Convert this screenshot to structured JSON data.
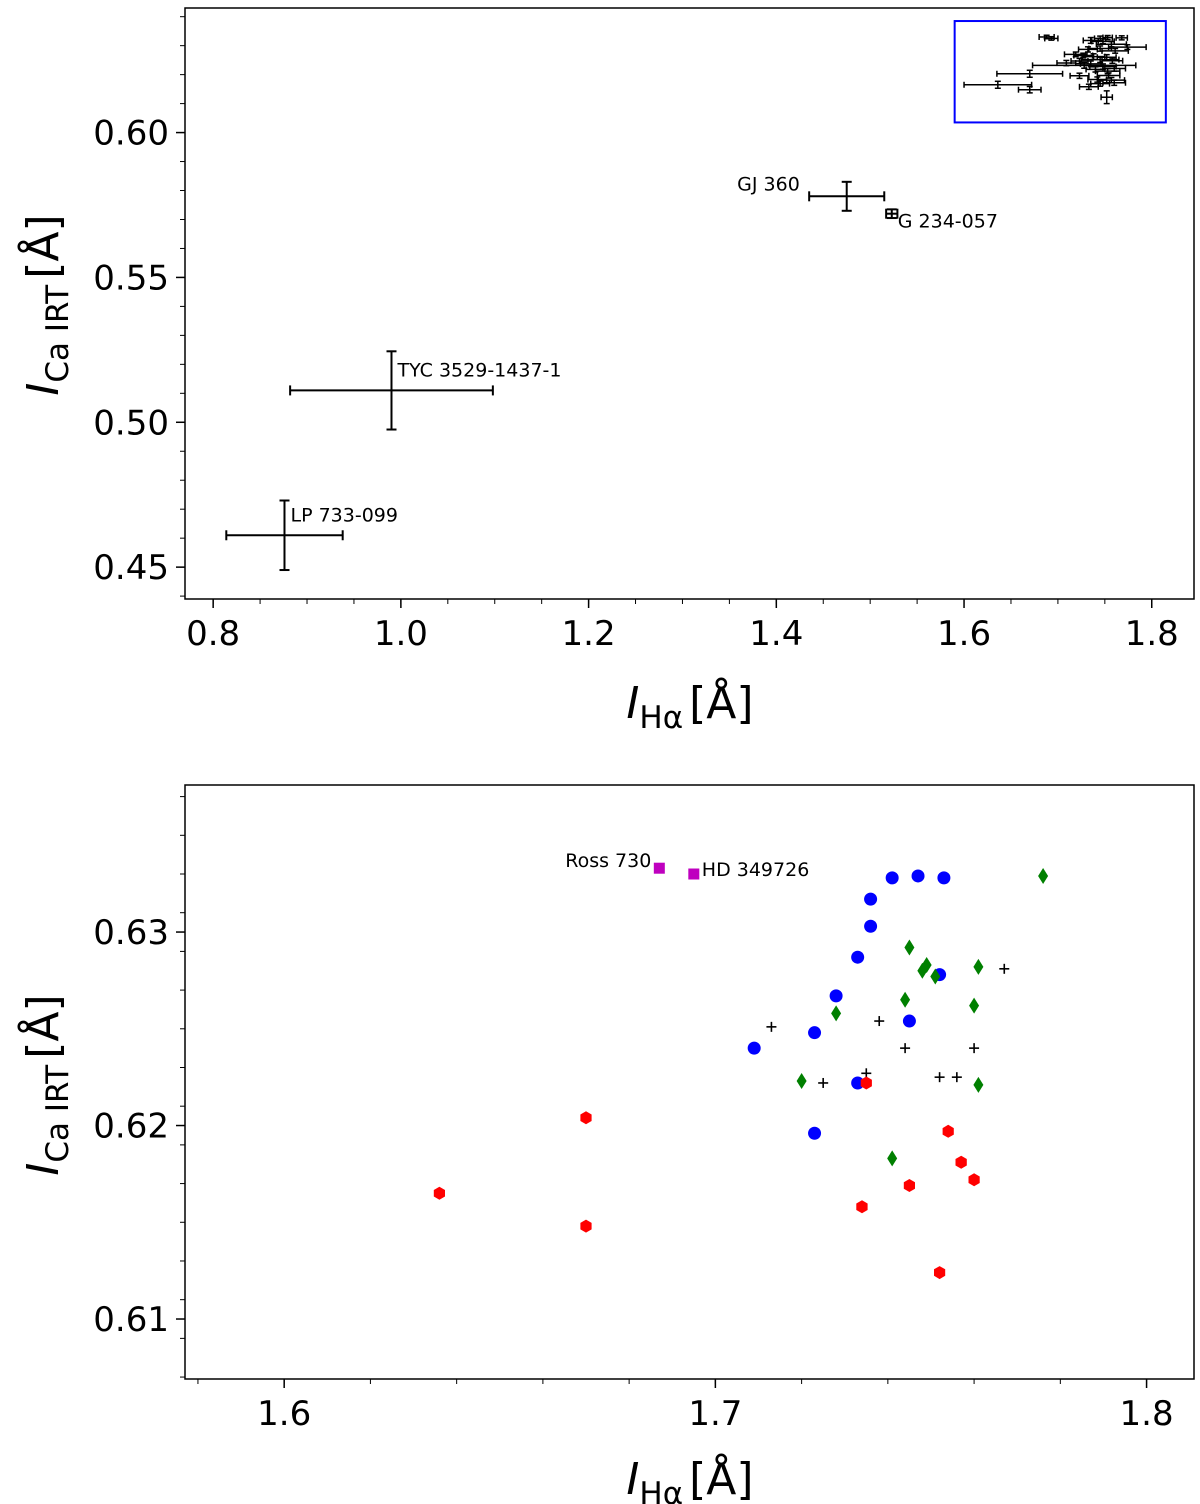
{
  "chart_data": [
    {
      "type": "scatter",
      "title": "",
      "xlabel": {
        "base": "I",
        "sub": "Hα",
        "unit": "[Å]"
      },
      "ylabel": {
        "base": "I",
        "sub": "Ca IRT",
        "unit": "[Å]"
      },
      "xlim": [
        0.77,
        1.845
      ],
      "ylim": [
        0.439,
        0.643
      ],
      "x_ticks": [
        0.8,
        1.0,
        1.2,
        1.4,
        1.6,
        1.8
      ],
      "x_tick_labels": [
        "0.8",
        "1.0",
        "1.2",
        "1.4",
        "1.6",
        "1.8"
      ],
      "y_ticks": [
        0.45,
        0.5,
        0.55,
        0.6
      ],
      "y_tick_labels": [
        "0.45",
        "0.50",
        "0.55",
        "0.60"
      ],
      "grid": false,
      "zoom_box": {
        "x_range": [
          1.59,
          1.815
        ],
        "y_range": [
          0.6035,
          0.6385
        ],
        "color": "#0000ff"
      },
      "labeled_points": [
        {
          "name": "GJ 360",
          "x": 1.475,
          "y": 0.578,
          "xerr": 0.04,
          "yerr": 0.005
        },
        {
          "name": "G 234-057",
          "x": 1.523,
          "y": 0.572,
          "xerr": 0.006,
          "yerr": 0.0015
        },
        {
          "name": "TYC 3529-1437-1",
          "x": 0.99,
          "y": 0.511,
          "xerr": 0.108,
          "yerr": 0.0135
        },
        {
          "name": "LP 733-099",
          "x": 0.876,
          "y": 0.461,
          "xerr": 0.062,
          "yerr": 0.012
        }
      ],
      "cluster_points": [
        {
          "x": 1.688,
          "y": 0.633,
          "xerr": 0.008,
          "yerr": 0.0006
        },
        {
          "x": 1.693,
          "y": 0.6325,
          "xerr": 0.007,
          "yerr": 0.0006
        },
        {
          "x": 1.745,
          "y": 0.6325,
          "xerr": 0.006,
          "yerr": 0.0008
        },
        {
          "x": 1.753,
          "y": 0.6328,
          "xerr": 0.005,
          "yerr": 0.0007
        },
        {
          "x": 1.768,
          "y": 0.6327,
          "xerr": 0.006,
          "yerr": 0.0007
        },
        {
          "x": 1.735,
          "y": 0.6318,
          "xerr": 0.008,
          "yerr": 0.001
        },
        {
          "x": 1.748,
          "y": 0.6315,
          "xerr": 0.012,
          "yerr": 0.0008
        },
        {
          "x": 1.757,
          "y": 0.6305,
          "xerr": 0.016,
          "yerr": 0.0009
        },
        {
          "x": 1.774,
          "y": 0.6295,
          "xerr": 0.02,
          "yerr": 0.0008
        },
        {
          "x": 1.732,
          "y": 0.6287,
          "xerr": 0.01,
          "yerr": 0.0009
        },
        {
          "x": 1.745,
          "y": 0.629,
          "xerr": 0.012,
          "yerr": 0.0009
        },
        {
          "x": 1.761,
          "y": 0.6282,
          "xerr": 0.014,
          "yerr": 0.0008
        },
        {
          "x": 1.719,
          "y": 0.627,
          "xerr": 0.012,
          "yerr": 0.0008
        },
        {
          "x": 1.727,
          "y": 0.6266,
          "xerr": 0.01,
          "yerr": 0.0008
        },
        {
          "x": 1.738,
          "y": 0.6262,
          "xerr": 0.012,
          "yerr": 0.001
        },
        {
          "x": 1.752,
          "y": 0.626,
          "xerr": 0.01,
          "yerr": 0.0009
        },
        {
          "x": 1.745,
          "y": 0.6252,
          "xerr": 0.02,
          "yerr": 0.001
        },
        {
          "x": 1.758,
          "y": 0.6248,
          "xerr": 0.011,
          "yerr": 0.0009
        },
        {
          "x": 1.723,
          "y": 0.6247,
          "xerr": 0.009,
          "yerr": 0.0009
        },
        {
          "x": 1.709,
          "y": 0.624,
          "xerr": 0.01,
          "yerr": 0.0009
        },
        {
          "x": 1.735,
          "y": 0.6237,
          "xerr": 0.011,
          "yerr": 0.001
        },
        {
          "x": 1.728,
          "y": 0.6232,
          "xerr": 0.055,
          "yerr": 0.001
        },
        {
          "x": 1.748,
          "y": 0.6228,
          "xerr": 0.014,
          "yerr": 0.0009
        },
        {
          "x": 1.76,
          "y": 0.6221,
          "xerr": 0.012,
          "yerr": 0.0009
        },
        {
          "x": 1.74,
          "y": 0.6218,
          "xerr": 0.01,
          "yerr": 0.0009
        },
        {
          "x": 1.753,
          "y": 0.6212,
          "xerr": 0.013,
          "yerr": 0.0009
        },
        {
          "x": 1.67,
          "y": 0.6203,
          "xerr": 0.035,
          "yerr": 0.0012
        },
        {
          "x": 1.723,
          "y": 0.6196,
          "xerr": 0.01,
          "yerr": 0.0009
        },
        {
          "x": 1.754,
          "y": 0.6197,
          "xerr": 0.012,
          "yerr": 0.0009
        },
        {
          "x": 1.742,
          "y": 0.6183,
          "xerr": 0.01,
          "yerr": 0.0009
        },
        {
          "x": 1.757,
          "y": 0.6181,
          "xerr": 0.014,
          "yerr": 0.0009
        },
        {
          "x": 1.745,
          "y": 0.6169,
          "xerr": 0.01,
          "yerr": 0.0009
        },
        {
          "x": 1.76,
          "y": 0.6172,
          "xerr": 0.012,
          "yerr": 0.0009
        },
        {
          "x": 1.636,
          "y": 0.6165,
          "xerr": 0.036,
          "yerr": 0.0012
        },
        {
          "x": 1.67,
          "y": 0.6148,
          "xerr": 0.012,
          "yerr": 0.0011
        },
        {
          "x": 1.733,
          "y": 0.6158,
          "xerr": 0.01,
          "yerr": 0.0009
        },
        {
          "x": 1.752,
          "y": 0.6122,
          "xerr": 0.006,
          "yerr": 0.0022
        }
      ]
    },
    {
      "type": "scatter",
      "title": "",
      "xlabel": {
        "base": "I",
        "sub": "Hα",
        "unit": "[Å]"
      },
      "ylabel": {
        "base": "I",
        "sub": "Ca IRT",
        "unit": "[Å]"
      },
      "xlim": [
        1.577,
        1.811
      ],
      "ylim": [
        0.6069,
        0.6376
      ],
      "x_ticks": [
        1.6,
        1.7,
        1.8
      ],
      "x_tick_labels": [
        "1.6",
        "1.7",
        "1.8"
      ],
      "y_ticks": [
        0.61,
        0.62,
        0.63
      ],
      "y_tick_labels": [
        "0.61",
        "0.62",
        "0.63"
      ],
      "grid": false,
      "series": [
        {
          "name": "blue circles",
          "marker": "circle",
          "color": "#0000ff",
          "points": [
            {
              "x": 1.741,
              "y": 0.6328
            },
            {
              "x": 1.747,
              "y": 0.6329
            },
            {
              "x": 1.753,
              "y": 0.6328
            },
            {
              "x": 1.736,
              "y": 0.6317
            },
            {
              "x": 1.736,
              "y": 0.6303
            },
            {
              "x": 1.733,
              "y": 0.6287
            },
            {
              "x": 1.752,
              "y": 0.6278
            },
            {
              "x": 1.728,
              "y": 0.6267
            },
            {
              "x": 1.745,
              "y": 0.6254
            },
            {
              "x": 1.723,
              "y": 0.6248
            },
            {
              "x": 1.709,
              "y": 0.624
            },
            {
              "x": 1.733,
              "y": 0.6222
            },
            {
              "x": 1.723,
              "y": 0.6196
            }
          ]
        },
        {
          "name": "green diamonds",
          "marker": "diamond",
          "color": "#008000",
          "points": [
            {
              "x": 1.776,
              "y": 0.6329
            },
            {
              "x": 1.745,
              "y": 0.6292
            },
            {
              "x": 1.749,
              "y": 0.6283
            },
            {
              "x": 1.761,
              "y": 0.6282
            },
            {
              "x": 1.748,
              "y": 0.628
            },
            {
              "x": 1.751,
              "y": 0.6277
            },
            {
              "x": 1.744,
              "y": 0.6265
            },
            {
              "x": 1.76,
              "y": 0.6262
            },
            {
              "x": 1.728,
              "y": 0.6258
            },
            {
              "x": 1.72,
              "y": 0.6223
            },
            {
              "x": 1.761,
              "y": 0.6221
            },
            {
              "x": 1.741,
              "y": 0.6183
            }
          ]
        },
        {
          "name": "black plus",
          "marker": "plus",
          "color": "#000000",
          "points": [
            {
              "x": 1.767,
              "y": 0.6281
            },
            {
              "x": 1.713,
              "y": 0.6251
            },
            {
              "x": 1.738,
              "y": 0.6254
            },
            {
              "x": 1.744,
              "y": 0.624
            },
            {
              "x": 1.76,
              "y": 0.624
            },
            {
              "x": 1.725,
              "y": 0.6222
            },
            {
              "x": 1.735,
              "y": 0.6227
            },
            {
              "x": 1.752,
              "y": 0.6225
            },
            {
              "x": 1.756,
              "y": 0.6225
            }
          ]
        },
        {
          "name": "red hexagons",
          "marker": "hexagon",
          "color": "#ff0000",
          "points": [
            {
              "x": 1.67,
              "y": 0.6204
            },
            {
              "x": 1.636,
              "y": 0.6165
            },
            {
              "x": 1.67,
              "y": 0.6148
            },
            {
              "x": 1.735,
              "y": 0.6222
            },
            {
              "x": 1.754,
              "y": 0.6197
            },
            {
              "x": 1.757,
              "y": 0.6181
            },
            {
              "x": 1.76,
              "y": 0.6172
            },
            {
              "x": 1.745,
              "y": 0.6169
            },
            {
              "x": 1.734,
              "y": 0.6158
            },
            {
              "x": 1.752,
              "y": 0.6124
            }
          ]
        },
        {
          "name": "magenta squares",
          "marker": "square",
          "color": "#bf00bf",
          "points": [
            {
              "x": 1.687,
              "y": 0.6333,
              "label": "Ross 730"
            },
            {
              "x": 1.695,
              "y": 0.633,
              "label": "HD 349726"
            }
          ]
        }
      ]
    }
  ]
}
